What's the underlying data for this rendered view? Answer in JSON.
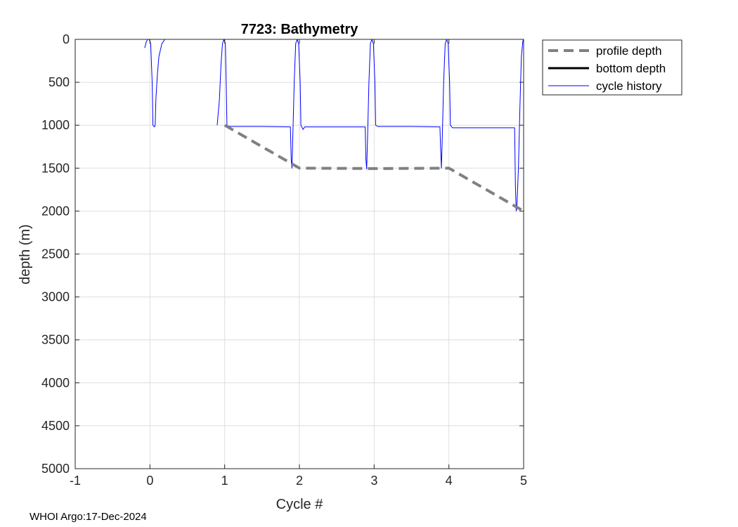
{
  "chart_data": {
    "type": "line",
    "title": "7723: Bathymetry",
    "xlabel": "Cycle #",
    "ylabel": "depth (m)",
    "xlim": [
      -1,
      5
    ],
    "ylim": [
      0,
      5000
    ],
    "y_reversed": true,
    "grid": true,
    "x_ticks": [
      "-1",
      "0",
      "1",
      "2",
      "3",
      "4",
      "5"
    ],
    "y_ticks": [
      "0",
      "500",
      "1000",
      "1500",
      "2000",
      "2500",
      "3000",
      "3500",
      "4000",
      "4500",
      "5000"
    ],
    "legend_position": "outside-top-right",
    "legend": [
      "profile depth",
      "bottom depth",
      "cycle history"
    ],
    "series": [
      {
        "name": "profile depth",
        "color": "#808080",
        "style": "dashed",
        "x": [
          1,
          2,
          3,
          4,
          5
        ],
        "y": [
          1000,
          1500,
          1505,
          1500,
          2000
        ]
      },
      {
        "name": "bottom depth",
        "color": "#000000",
        "style": "solid",
        "x": [],
        "y": []
      },
      {
        "name": "cycle history",
        "color": "#0000ff",
        "style": "solid",
        "x": [
          -0.07,
          -0.05,
          -0.03,
          -0.01,
          0.01,
          0.03,
          0.04,
          0.06,
          0.07,
          0.08,
          0.1,
          0.12,
          0.16,
          0.2,
          0.23,
          null,
          0.9,
          0.93,
          0.95,
          0.97,
          0.99,
          1.01,
          1.02,
          1.03,
          1.05,
          1.07,
          1.12,
          1.5,
          1.88,
          1.89,
          1.9,
          1.91,
          1.93,
          1.95,
          1.97,
          1.99,
          2.01,
          2.02,
          2.05,
          2.07,
          2.1,
          2.5,
          2.88,
          2.89,
          2.9,
          2.91,
          2.93,
          2.95,
          2.97,
          2.99,
          3.01,
          3.02,
          3.05,
          3.07,
          3.1,
          3.5,
          3.88,
          3.89,
          3.9,
          3.91,
          3.93,
          3.95,
          3.97,
          3.99,
          4.01,
          4.02,
          4.05,
          4.07,
          4.1,
          4.5,
          4.88,
          4.89,
          4.9,
          4.91,
          4.93,
          4.95,
          4.97,
          4.99,
          5.0
        ],
        "y": [
          100,
          30,
          0,
          0,
          50,
          500,
          1000,
          1020,
          1000,
          700,
          400,
          200,
          50,
          0,
          0,
          null,
          1000,
          700,
          300,
          50,
          0,
          50,
          500,
          1000,
          1010,
          1015,
          1015,
          1015,
          1020,
          1400,
          1500,
          1200,
          500,
          50,
          0,
          50,
          500,
          1000,
          1050,
          1020,
          1020,
          1020,
          1020,
          1400,
          1510,
          1200,
          500,
          50,
          0,
          50,
          500,
          1000,
          1015,
          1015,
          1015,
          1015,
          1020,
          1300,
          1500,
          1200,
          500,
          50,
          0,
          50,
          500,
          1000,
          1030,
          1030,
          1030,
          1030,
          1030,
          1700,
          2000,
          1950,
          1500,
          800,
          200,
          20,
          0
        ]
      }
    ]
  },
  "footer": "WHOI Argo:17-Dec-2024"
}
